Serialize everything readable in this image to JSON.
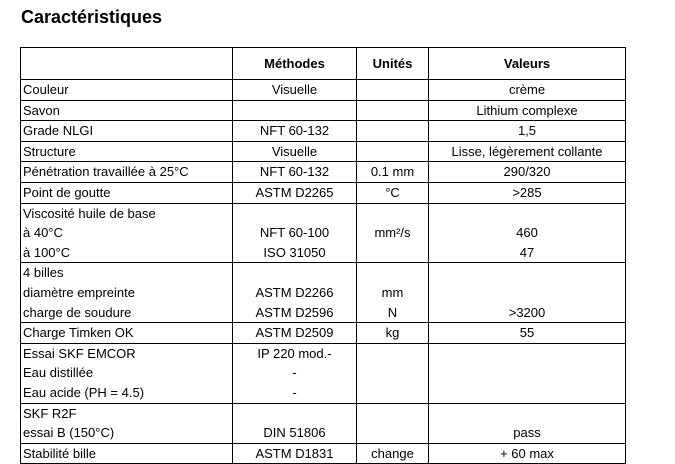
{
  "title": "Caractéristiques",
  "headers": [
    "",
    "Méthodes",
    "Unités",
    "Valeurs"
  ],
  "rows": [
    [
      [
        "Couleur"
      ],
      [
        "Visuelle"
      ],
      [
        ""
      ],
      [
        "crème"
      ]
    ],
    [
      [
        "Savon"
      ],
      [
        ""
      ],
      [
        ""
      ],
      [
        "Lithium complexe"
      ]
    ],
    [
      [
        "Grade NLGI"
      ],
      [
        "NFT 60-132"
      ],
      [
        ""
      ],
      [
        "1,5"
      ]
    ],
    [
      [
        "Structure"
      ],
      [
        "Visuelle"
      ],
      [
        ""
      ],
      [
        "Lisse, légèrement collante"
      ]
    ],
    [
      [
        "Pénétration travaillée à 25°C"
      ],
      [
        "NFT 60-132"
      ],
      [
        "0.1 mm"
      ],
      [
        "290/320"
      ]
    ],
    [
      [
        "Point de goutte"
      ],
      [
        "ASTM D2265"
      ],
      [
        "°C"
      ],
      [
        ">285"
      ]
    ],
    [
      [
        "Viscosité huile de base",
        "à 40°C",
        "à 100°C"
      ],
      [
        "",
        "NFT 60-100",
        "ISO 31050"
      ],
      [
        "",
        "mm²/s",
        ""
      ],
      [
        "",
        "460",
        "47"
      ]
    ],
    [
      [
        "4 billes",
        "diamètre empreinte",
        "charge de soudure"
      ],
      [
        "",
        "ASTM D2266",
        "ASTM D2596"
      ],
      [
        "",
        "mm",
        "N"
      ],
      [
        "",
        "",
        ">3200"
      ]
    ],
    [
      [
        "Charge Timken OK"
      ],
      [
        "ASTM D2509"
      ],
      [
        "kg"
      ],
      [
        "55"
      ]
    ],
    [
      [
        "Essai SKF EMCOR",
        "Eau distillée",
        "Eau acide (PH = 4.5)"
      ],
      [
        "IP 220 mod.-",
        "-",
        "-"
      ],
      [
        "",
        "",
        ""
      ],
      [
        "",
        "",
        ""
      ]
    ],
    [
      [
        "SKF R2F",
        "essai B (150°C)"
      ],
      [
        "",
        "DIN 51806"
      ],
      [
        "",
        ""
      ],
      [
        "",
        "pass"
      ]
    ],
    [
      [
        "Stabilité bille"
      ],
      [
        "ASTM D1831"
      ],
      [
        "change"
      ],
      [
        "+ 60 max"
      ]
    ]
  ]
}
